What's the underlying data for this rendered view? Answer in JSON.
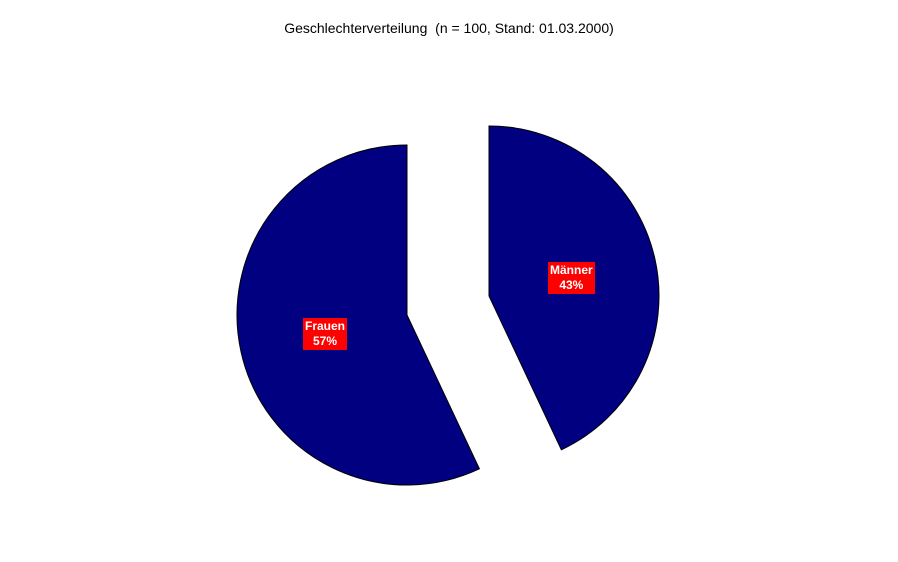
{
  "chart_data": {
    "type": "pie",
    "title": "Geschlechterverteilung  (n = 100, Stand: 01.03.2000)",
    "slices": [
      {
        "label": "Männer",
        "value": 43,
        "value_label": "43%",
        "color": "#000080",
        "exploded": true
      },
      {
        "label": "Frauen",
        "value": 57,
        "value_label": "57%",
        "color": "#000080",
        "exploded": true
      }
    ],
    "label_background": "#ff0000",
    "label_color": "#ffffff",
    "start_angle": "12 o'clock",
    "direction": "clockwise"
  }
}
